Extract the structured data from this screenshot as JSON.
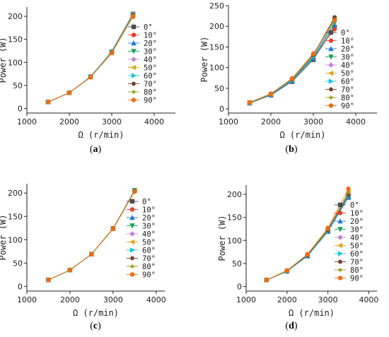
{
  "colors": {
    "series": [
      "#4d4d4d",
      "#e8402c",
      "#1f77d4",
      "#1a9f5a",
      "#c77fd6",
      "#e5a51a",
      "#17c4d4",
      "#7a3f2a",
      "#9a9a1a",
      "#ef6c14"
    ],
    "axis": "#222222"
  },
  "markers": [
    "square",
    "circle",
    "triangle-up",
    "triangle-down",
    "diamond",
    "triangle-left",
    "triangle-right",
    "hexagon",
    "star",
    "circle"
  ],
  "legend_entries": [
    "0°",
    "10°",
    "20°",
    "30°",
    "40°",
    "50°",
    "60°",
    "70°",
    "80°",
    "90°"
  ],
  "chart_data": [
    {
      "panel": "a",
      "panel_label": "(a)",
      "type": "line",
      "xlabel": "Ω  (r/min)",
      "ylabel": "Power  (W)",
      "xlim": [
        1000,
        4500
      ],
      "ylim": [
        -10,
        220
      ],
      "xticks": [
        1000,
        2000,
        3000,
        4000
      ],
      "yticks": [
        0,
        50,
        100,
        150,
        200
      ],
      "x": [
        1500,
        2000,
        2500,
        3000,
        3500
      ],
      "series": [
        {
          "name": "0°",
          "values": [
            14,
            34,
            69,
            123,
            205
          ]
        },
        {
          "name": "10°",
          "values": [
            14,
            34,
            68,
            122,
            203
          ]
        },
        {
          "name": "20°",
          "values": [
            14,
            34,
            69,
            124,
            206
          ]
        },
        {
          "name": "30°",
          "values": [
            14,
            34,
            68,
            122,
            204
          ]
        },
        {
          "name": "40°",
          "values": [
            14,
            34,
            69,
            123,
            205
          ]
        },
        {
          "name": "50°",
          "values": [
            14,
            34,
            68,
            121,
            200
          ]
        },
        {
          "name": "60°",
          "values": [
            14,
            34,
            69,
            123,
            204
          ]
        },
        {
          "name": "70°",
          "values": [
            14,
            34,
            68,
            122,
            203
          ]
        },
        {
          "name": "80°",
          "values": [
            14,
            34,
            68,
            122,
            202
          ]
        },
        {
          "name": "90°",
          "values": [
            14,
            34,
            68,
            120,
            199
          ]
        }
      ]
    },
    {
      "panel": "b",
      "panel_label": "(b)",
      "type": "line",
      "xlabel": "Ω  (r/min)",
      "ylabel": "Power  (W)",
      "xlim": [
        1000,
        4500
      ],
      "ylim": [
        -10,
        250
      ],
      "xticks": [
        1000,
        2000,
        3000,
        4000
      ],
      "yticks": [
        0,
        50,
        100,
        150,
        200,
        250
      ],
      "x": [
        1500,
        2000,
        2500,
        3000,
        3500
      ],
      "series": [
        {
          "name": "0°",
          "values": [
            14,
            33,
            66,
            119,
            198
          ]
        },
        {
          "name": "10°",
          "values": [
            14,
            35,
            70,
            125,
            193
          ]
        },
        {
          "name": "20°",
          "values": [
            14,
            34,
            68,
            122,
            203
          ]
        },
        {
          "name": "30°",
          "values": [
            14,
            35,
            69,
            124,
            208
          ]
        },
        {
          "name": "40°",
          "values": [
            15,
            35,
            71,
            128,
            218
          ]
        },
        {
          "name": "50°",
          "values": [
            15,
            36,
            72,
            130,
            220
          ]
        },
        {
          "name": "60°",
          "values": [
            15,
            35,
            70,
            127,
            212
          ]
        },
        {
          "name": "70°",
          "values": [
            15,
            36,
            72,
            131,
            222
          ]
        },
        {
          "name": "80°",
          "values": [
            15,
            36,
            73,
            133,
            216
          ]
        },
        {
          "name": "90°",
          "values": [
            16,
            37,
            74,
            134,
            214
          ]
        }
      ]
    },
    {
      "panel": "c",
      "panel_label": "(c)",
      "type": "line",
      "xlabel": "Ω  (r/min)",
      "ylabel": "Power  (W)",
      "xlim": [
        1000,
        4200
      ],
      "ylim": [
        -10,
        220
      ],
      "xticks": [
        1000,
        2000,
        3000,
        4000
      ],
      "yticks": [
        0,
        50,
        100,
        150,
        200
      ],
      "x": [
        1500,
        2000,
        2500,
        3000,
        3500
      ],
      "series": [
        {
          "name": "0°",
          "values": [
            14,
            35,
            69,
            124,
            206
          ]
        },
        {
          "name": "10°",
          "values": [
            14,
            35,
            69,
            124,
            205
          ]
        },
        {
          "name": "20°",
          "values": [
            14,
            35,
            69,
            124,
            206
          ]
        },
        {
          "name": "30°",
          "values": [
            14,
            35,
            69,
            124,
            205
          ]
        },
        {
          "name": "40°",
          "values": [
            14,
            35,
            69,
            124,
            206
          ]
        },
        {
          "name": "50°",
          "values": [
            14,
            35,
            69,
            124,
            205
          ]
        },
        {
          "name": "60°",
          "values": [
            14,
            35,
            69,
            124,
            206
          ]
        },
        {
          "name": "70°",
          "values": [
            14,
            35,
            69,
            124,
            205
          ]
        },
        {
          "name": "80°",
          "values": [
            14,
            35,
            69,
            124,
            205
          ]
        },
        {
          "name": "90°",
          "values": [
            14,
            35,
            69,
            123,
            203
          ]
        }
      ]
    },
    {
      "panel": "d",
      "panel_label": "(d)",
      "type": "line",
      "xlabel": "Ω  (r/min)",
      "ylabel": "Power  (W)",
      "xlim": [
        1000,
        4200
      ],
      "ylim": [
        -10,
        220
      ],
      "xticks": [
        1000,
        2000,
        3000,
        4000
      ],
      "yticks": [
        0,
        50,
        100,
        150,
        200
      ],
      "x": [
        1500,
        2000,
        2500,
        3000,
        3500
      ],
      "series": [
        {
          "name": "0°",
          "values": [
            14,
            33,
            66,
            120,
            195
          ]
        },
        {
          "name": "10°",
          "values": [
            14,
            34,
            68,
            124,
            200
          ]
        },
        {
          "name": "20°",
          "values": [
            14,
            33,
            66,
            119,
            193
          ]
        },
        {
          "name": "30°",
          "values": [
            14,
            33,
            67,
            121,
            197
          ]
        },
        {
          "name": "40°",
          "values": [
            14,
            34,
            68,
            123,
            201
          ]
        },
        {
          "name": "50°",
          "values": [
            14,
            34,
            69,
            125,
            205
          ]
        },
        {
          "name": "60°",
          "values": [
            14,
            33,
            67,
            120,
            196
          ]
        },
        {
          "name": "70°",
          "values": [
            14,
            34,
            68,
            122,
            199
          ]
        },
        {
          "name": "80°",
          "values": [
            14,
            34,
            69,
            124,
            204
          ]
        },
        {
          "name": "90°",
          "values": [
            14,
            35,
            70,
            127,
            212
          ]
        }
      ]
    }
  ]
}
